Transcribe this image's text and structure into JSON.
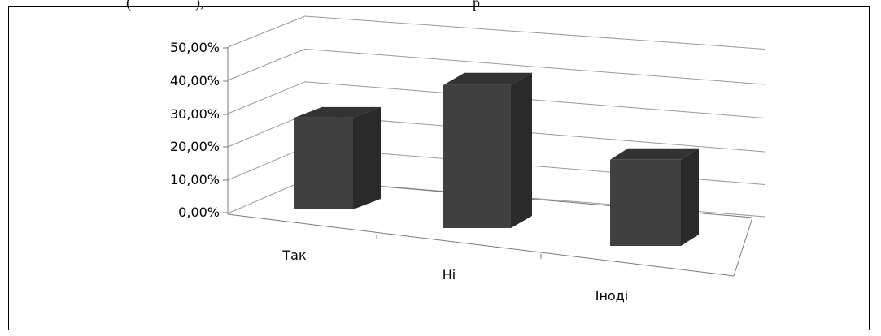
{
  "header_fragment": {
    "left_text": "(",
    "middle_text": "),",
    "right_text": "р"
  },
  "chart_data": {
    "type": "bar",
    "categories": [
      "Так",
      "Ні",
      "Іноді"
    ],
    "values": [
      0.276,
      0.43,
      0.259
    ],
    "y_ticks": [
      "0,00%",
      "10,00%",
      "20,00%",
      "30,00%",
      "40,00%",
      "50,00%"
    ],
    "ylim": [
      0,
      0.5
    ],
    "grid": true,
    "three_d": true,
    "bar_color": "#404040"
  }
}
